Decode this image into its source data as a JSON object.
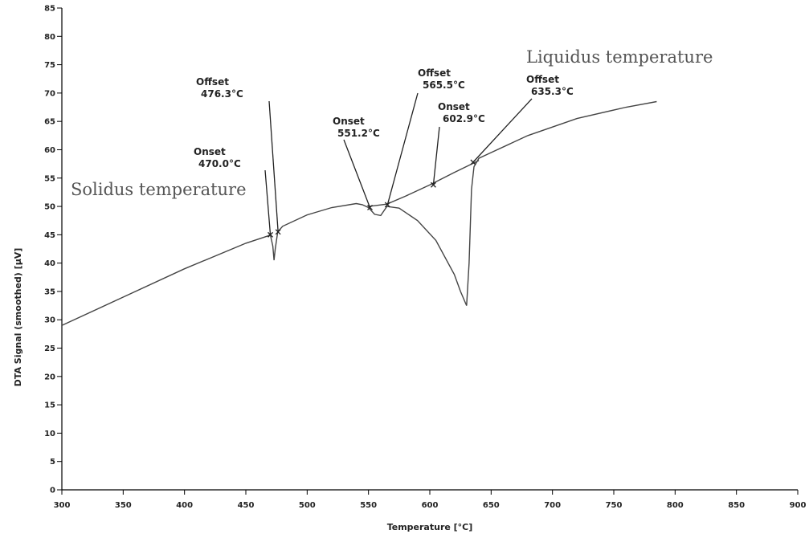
{
  "chart_data": {
    "type": "line",
    "xlabel": "Temperature  [°C]",
    "ylabel": "DTA Signal (smoothed)  [µV]",
    "xlim": [
      300,
      900
    ],
    "ylim": [
      0,
      85
    ],
    "x_ticks": [
      300,
      350,
      400,
      450,
      500,
      550,
      600,
      650,
      700,
      750,
      800,
      850,
      900
    ],
    "y_ticks": [
      0,
      5,
      10,
      15,
      20,
      25,
      30,
      35,
      40,
      45,
      50,
      55,
      60,
      65,
      70,
      75,
      80,
      85
    ],
    "grid": false,
    "series": [
      {
        "x": [
          300,
          350,
          400,
          450,
          468,
          470,
          472,
          473,
          474,
          476,
          480,
          500,
          520,
          540,
          545,
          550,
          555,
          560,
          565,
          575,
          590,
          605,
          620,
          625,
          630,
          632,
          634,
          636,
          640,
          650,
          680,
          720,
          760,
          785
        ],
        "y": [
          29,
          34,
          39,
          43.5,
          44.8,
          45,
          43,
          40.5,
          42.5,
          45.5,
          46.5,
          48.5,
          49.8,
          50.5,
          50.3,
          49.8,
          48.6,
          48.4,
          50,
          49.7,
          47.5,
          44,
          38,
          35,
          32.5,
          40,
          53,
          57,
          58.5,
          59.5,
          62.5,
          65.5,
          67.5,
          68.5
        ]
      },
      {
        "x": [
          550,
          565,
          580,
          600,
          620,
          640
        ],
        "y": [
          50,
          50.4,
          51.8,
          53.8,
          56,
          58.1
        ]
      }
    ],
    "annotations": [
      {
        "id": "offset-476",
        "title": "Offset",
        "value": "476.3°C",
        "x": 476.3,
        "y": 45.5
      },
      {
        "id": "onset-470",
        "title": "Onset",
        "value": "470.0°C",
        "x": 470.0,
        "y": 45
      },
      {
        "id": "onset-551",
        "title": "Onset",
        "value": "551.2°C",
        "x": 551.2,
        "y": 49.8
      },
      {
        "id": "offset-565",
        "title": "Offset",
        "value": "565.5°C",
        "x": 565.5,
        "y": 50.3
      },
      {
        "id": "onset-603",
        "title": "Onset",
        "value": "602.9°C",
        "x": 602.9,
        "y": 53.8
      },
      {
        "id": "offset-635",
        "title": "Offset",
        "value": "635.3°C",
        "x": 635.3,
        "y": 57.8
      }
    ],
    "labels": {
      "solidus": "Solidus temperature",
      "liquidus": "Liquidus temperature"
    }
  }
}
